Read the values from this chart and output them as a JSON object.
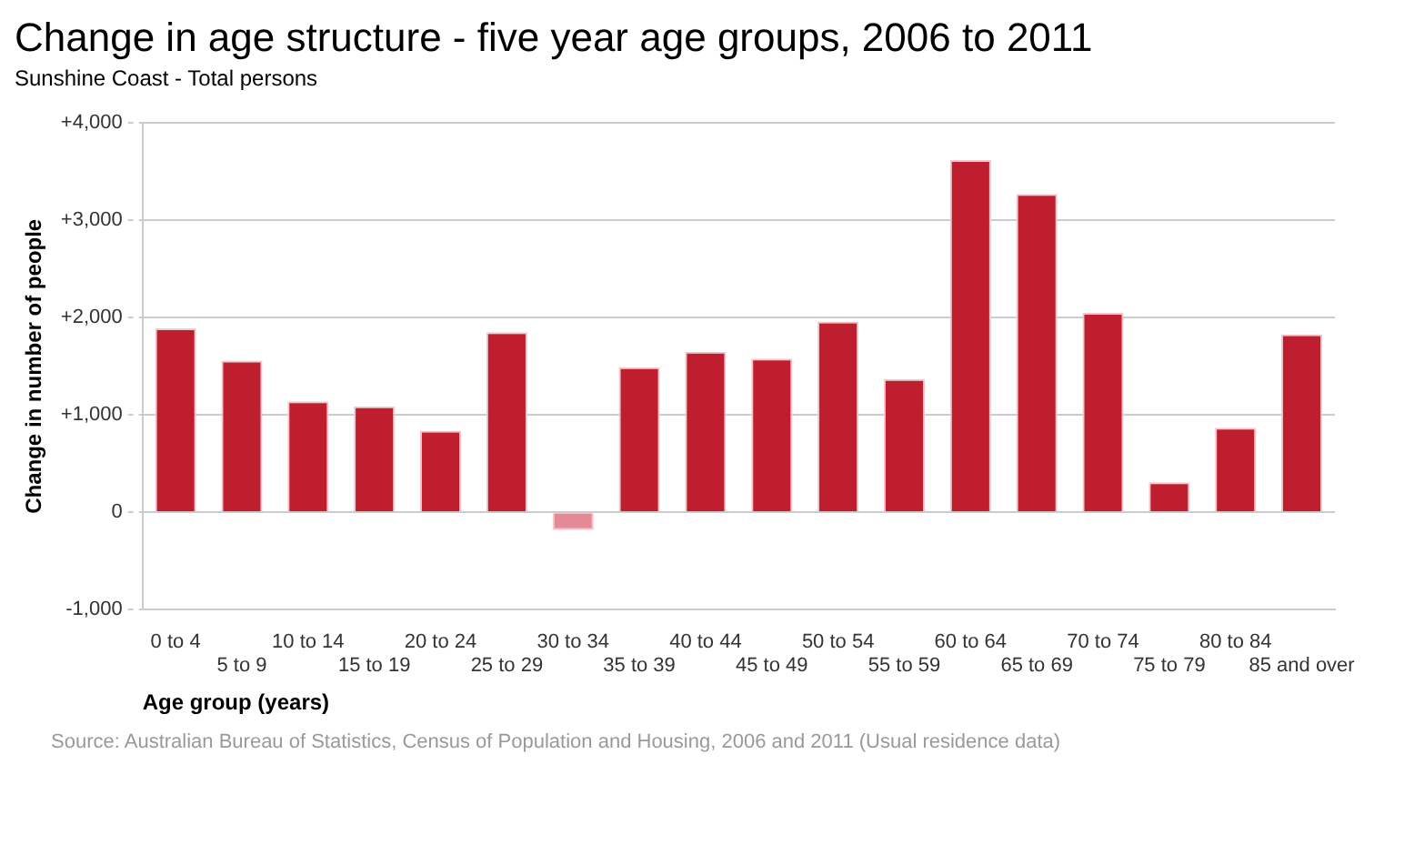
{
  "chart_data": {
    "type": "bar",
    "title": "Change in age structure - five year age groups, 2006 to 2011",
    "subtitle": "Sunshine Coast - Total persons",
    "xlabel": "Age group (years)",
    "ylabel": "Change in number of people",
    "categories": [
      "0 to 4",
      "5 to 9",
      "10 to 14",
      "15 to 19",
      "20 to 24",
      "25 to 29",
      "30 to 34",
      "35 to 39",
      "40 to 44",
      "45 to 49",
      "50 to 54",
      "55 to 59",
      "60 to 64",
      "65 to 69",
      "70 to 74",
      "75 to 79",
      "80 to 84",
      "85 and over"
    ],
    "values": [
      1890,
      1560,
      1140,
      1090,
      840,
      1850,
      -180,
      1490,
      1650,
      1580,
      1960,
      1370,
      3620,
      3270,
      2050,
      310,
      870,
      1830
    ],
    "colors": [
      "#be1e2d",
      "#be1e2d",
      "#be1e2d",
      "#be1e2d",
      "#be1e2d",
      "#be1e2d",
      "#e38a96",
      "#be1e2d",
      "#be1e2d",
      "#be1e2d",
      "#be1e2d",
      "#be1e2d",
      "#be1e2d",
      "#be1e2d",
      "#be1e2d",
      "#be1e2d",
      "#be1e2d",
      "#be1e2d"
    ],
    "ylim": [
      -1000,
      4000
    ],
    "yticks": [
      {
        "value": -1000,
        "label": "-1,000"
      },
      0,
      {
        "value": 1000,
        "label": "+1,000"
      },
      {
        "value": 2000,
        "label": "+2,000"
      },
      {
        "value": 3000,
        "label": "+3,000"
      },
      {
        "value": 4000,
        "label": "+4,000"
      }
    ],
    "grid": "y",
    "legend": false,
    "annotations": [
      "Source: Australian Bureau of Statistics, Census of Population and Housing, 2006 and 2011 (Usual residence data)"
    ]
  }
}
